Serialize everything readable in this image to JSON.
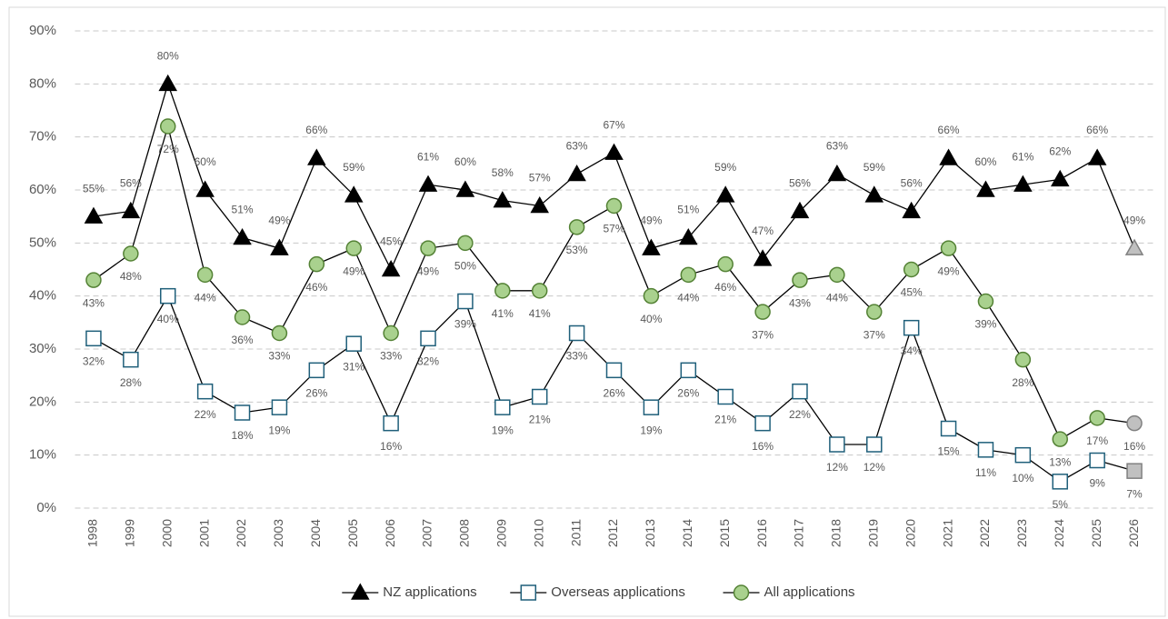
{
  "chart_data": {
    "type": "line",
    "categories": [
      "1998",
      "1999",
      "2000",
      "2001",
      "2002",
      "2003",
      "2004",
      "2005",
      "2006",
      "2007",
      "2008",
      "2009",
      "2010",
      "2011",
      "2012",
      "2013",
      "2014",
      "2015",
      "2016",
      "2017",
      "2018",
      "2019",
      "2020",
      "2021",
      "2022",
      "2023",
      "2024",
      "2025",
      "2026"
    ],
    "ylim": [
      0,
      90
    ],
    "yticks": [
      {
        "value": 0,
        "label": "0%"
      },
      {
        "value": 10,
        "label": "10%"
      },
      {
        "value": 20,
        "label": "20%"
      },
      {
        "value": 30,
        "label": "30%"
      },
      {
        "value": 40,
        "label": "40%"
      },
      {
        "value": 50,
        "label": "50%"
      },
      {
        "value": 60,
        "label": "60%"
      },
      {
        "value": 70,
        "label": "70%"
      },
      {
        "value": 80,
        "label": "80%"
      },
      {
        "value": 90,
        "label": "90%"
      }
    ],
    "grid": true,
    "legend": "bottom",
    "last_marker_fill": "#c0c0c0",
    "series": [
      {
        "name": "NZ applications",
        "color": "#000000",
        "marker": "triangle",
        "marker_fill": "#000000",
        "marker_stroke": "#000000",
        "label_side": "above",
        "values": [
          55,
          56,
          80,
          60,
          51,
          49,
          66,
          59,
          45,
          61,
          60,
          58,
          57,
          63,
          67,
          49,
          51,
          59,
          47,
          56,
          63,
          59,
          56,
          66,
          60,
          61,
          62,
          66,
          49
        ],
        "value_labels": [
          "55%",
          "56%",
          "80%",
          "60%",
          "51%",
          "49%",
          "66%",
          "59%",
          "45%",
          "61%",
          "60%",
          "58%",
          "57%",
          "63%",
          "67%",
          "49%",
          "51%",
          "59%",
          "47%",
          "56%",
          "63%",
          "59%",
          "56%",
          "66%",
          "60%",
          "61%",
          "62%",
          "66%",
          "49%"
        ]
      },
      {
        "name": "Overseas applications",
        "color": "#000000",
        "marker": "square",
        "marker_fill": "#ffffff",
        "marker_stroke": "#1f5f7a",
        "label_side": "below",
        "values": [
          32,
          28,
          40,
          22,
          18,
          19,
          26,
          31,
          16,
          32,
          39,
          19,
          21,
          33,
          26,
          19,
          26,
          21,
          16,
          22,
          12,
          12,
          34,
          15,
          11,
          10,
          5,
          9,
          7
        ],
        "value_labels": [
          "32%",
          "28%",
          "40%",
          "22%",
          "18%",
          "19%",
          "26%",
          "31%",
          "16%",
          "32%",
          "39%",
          "19%",
          "21%",
          "33%",
          "26%",
          "19%",
          "26%",
          "21%",
          "16%",
          "22%",
          "12%",
          "12%",
          "34%",
          "15%",
          "11%",
          "10%",
          "5%",
          "9%",
          "7%"
        ]
      },
      {
        "name": "All applications",
        "color": "#000000",
        "marker": "circle",
        "marker_fill": "#a9d18e",
        "marker_stroke": "#548235",
        "label_side": "below",
        "values": [
          43,
          48,
          72,
          44,
          36,
          33,
          46,
          49,
          33,
          49,
          50,
          41,
          41,
          53,
          57,
          40,
          44,
          46,
          37,
          43,
          44,
          37,
          45,
          49,
          39,
          28,
          13,
          17,
          16
        ],
        "value_labels": [
          "43%",
          "48%",
          "72%",
          "44%",
          "36%",
          "33%",
          "46%",
          "49%",
          "33%",
          "49%",
          "50%",
          "41%",
          "41%",
          "53%",
          "57%",
          "40%",
          "44%",
          "46%",
          "37%",
          "43%",
          "44%",
          "37%",
          "45%",
          "49%",
          "39%",
          "28%",
          "13%",
          "17%",
          "16%"
        ]
      }
    ]
  }
}
